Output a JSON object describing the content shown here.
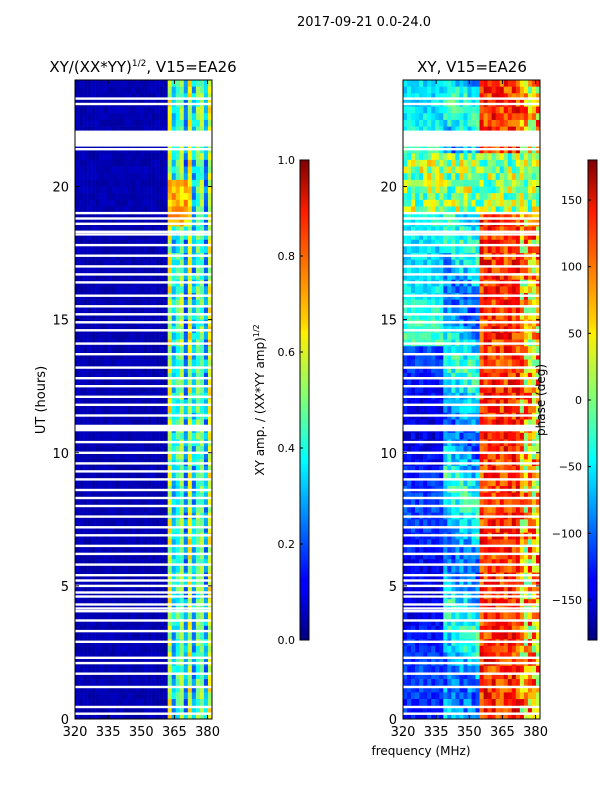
{
  "figure": {
    "suptitle": "2017-09-21 0.0-24.0",
    "shared_xlabel": "frequency (MHz)"
  },
  "chart_data": [
    {
      "type": "heatmap",
      "title_main": "XY/(XX*YY)",
      "title_exp": "1/2",
      "title_rest": ", V15=EA26",
      "ylabel": "UT (hours)",
      "xlim": [
        320,
        382
      ],
      "ylim": [
        0,
        24
      ],
      "xticks": [
        320,
        335,
        350,
        365,
        380
      ],
      "yticks": [
        0,
        5,
        10,
        15,
        20
      ],
      "colorbar": {
        "label_main": "XY amp. / (XX*YY amp)",
        "label_exp": "1/2",
        "range": [
          0.0,
          1.0
        ],
        "ticks": [
          "0.0",
          "0.2",
          "0.4",
          "0.6",
          "0.8",
          "1.0"
        ],
        "colormap": "jet"
      },
      "flagged_rows_ut": [
        0.2,
        0.45,
        1.2,
        1.7,
        2.1,
        2.3,
        2.9,
        3.3,
        3.7,
        4.05,
        4.15,
        4.3,
        4.6,
        4.75,
        5.0,
        5.2,
        5.4,
        5.8,
        6.2,
        6.5,
        6.9,
        7.2,
        7.6,
        8.0,
        8.3,
        8.6,
        9.0,
        9.3,
        9.6,
        10.0,
        10.4,
        10.85,
        11.0,
        11.4,
        11.8,
        12.1,
        12.5,
        12.8,
        13.2,
        13.7,
        14.1,
        14.6,
        14.9,
        15.2,
        15.5,
        15.9,
        16.4,
        16.7,
        17.0,
        17.4,
        17.8,
        18.2,
        18.3,
        18.6,
        18.8,
        19.0,
        21.4,
        21.6,
        21.9,
        23.1,
        23.3
      ],
      "flagged_bands_ut": [
        [
          21.5,
          22.1
        ],
        [
          10.85,
          11.05
        ]
      ]
    },
    {
      "type": "heatmap",
      "title": "XY, V15=EA26",
      "xlim": [
        320,
        382
      ],
      "ylim": [
        0,
        24
      ],
      "xticks": [
        320,
        335,
        350,
        365,
        380
      ],
      "yticks": [
        0,
        5,
        10,
        15,
        20
      ],
      "colorbar": {
        "label": "phase (deg)",
        "range": [
          -180,
          180
        ],
        "ticks": [
          "−150",
          "−100",
          "−50",
          "0",
          "50",
          "100",
          "150"
        ],
        "colormap": "jet"
      },
      "flagged_rows_ut": [
        0.2,
        0.45,
        1.2,
        1.7,
        2.1,
        2.3,
        2.9,
        3.3,
        3.7,
        4.05,
        4.15,
        4.3,
        4.6,
        4.75,
        5.0,
        5.2,
        5.4,
        5.8,
        6.2,
        6.5,
        6.9,
        7.2,
        7.6,
        8.0,
        8.3,
        8.6,
        9.0,
        9.3,
        9.6,
        10.0,
        10.4,
        10.85,
        11.0,
        11.4,
        11.8,
        12.1,
        12.5,
        12.8,
        13.2,
        13.7,
        14.1,
        14.6,
        14.9,
        15.2,
        15.5,
        15.9,
        16.4,
        16.7,
        17.0,
        17.4,
        17.8,
        18.2,
        18.3,
        18.6,
        18.8,
        19.0,
        21.4,
        21.6,
        21.9,
        23.1,
        23.3
      ],
      "flagged_bands_ut": [
        [
          21.5,
          22.1
        ],
        [
          10.85,
          11.05
        ]
      ]
    }
  ]
}
